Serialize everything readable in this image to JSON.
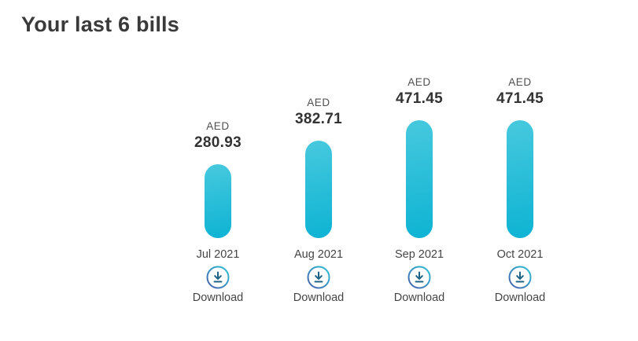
{
  "page": {
    "title": "Your last 6 bills"
  },
  "chart_data": {
    "type": "bar",
    "title": "Your last 6 bills",
    "categories": [
      "Jul 2021",
      "Aug 2021",
      "Sep 2021",
      "Oct 2021"
    ],
    "values": [
      280.93,
      382.71,
      471.45,
      471.45
    ],
    "currency": "AED",
    "xlabel": "",
    "ylabel": "",
    "grid": false,
    "legend": "none",
    "bar_shape": "rounded-pill",
    "bar_gradient_top": "#47c9de",
    "bar_gradient_bottom": "#0db3d3"
  },
  "bills": [
    {
      "currency": "AED",
      "amount": "280.93",
      "month": "Jul 2021",
      "download_label": "Download"
    },
    {
      "currency": "AED",
      "amount": "382.71",
      "month": "Aug 2021",
      "download_label": "Download"
    },
    {
      "currency": "AED",
      "amount": "471.45",
      "month": "Sep 2021",
      "download_label": "Download"
    },
    {
      "currency": "AED",
      "amount": "471.45",
      "month": "Oct 2021",
      "download_label": "Download"
    }
  ],
  "colors": {
    "title_text": "#3a3a3a",
    "amount_text": "#333333",
    "label_text": "#454545",
    "icon_ring_start": "#2ac4d6",
    "icon_ring_end": "#4a5cab",
    "icon_arrow": "#1d6385",
    "background": "#ffffff"
  }
}
